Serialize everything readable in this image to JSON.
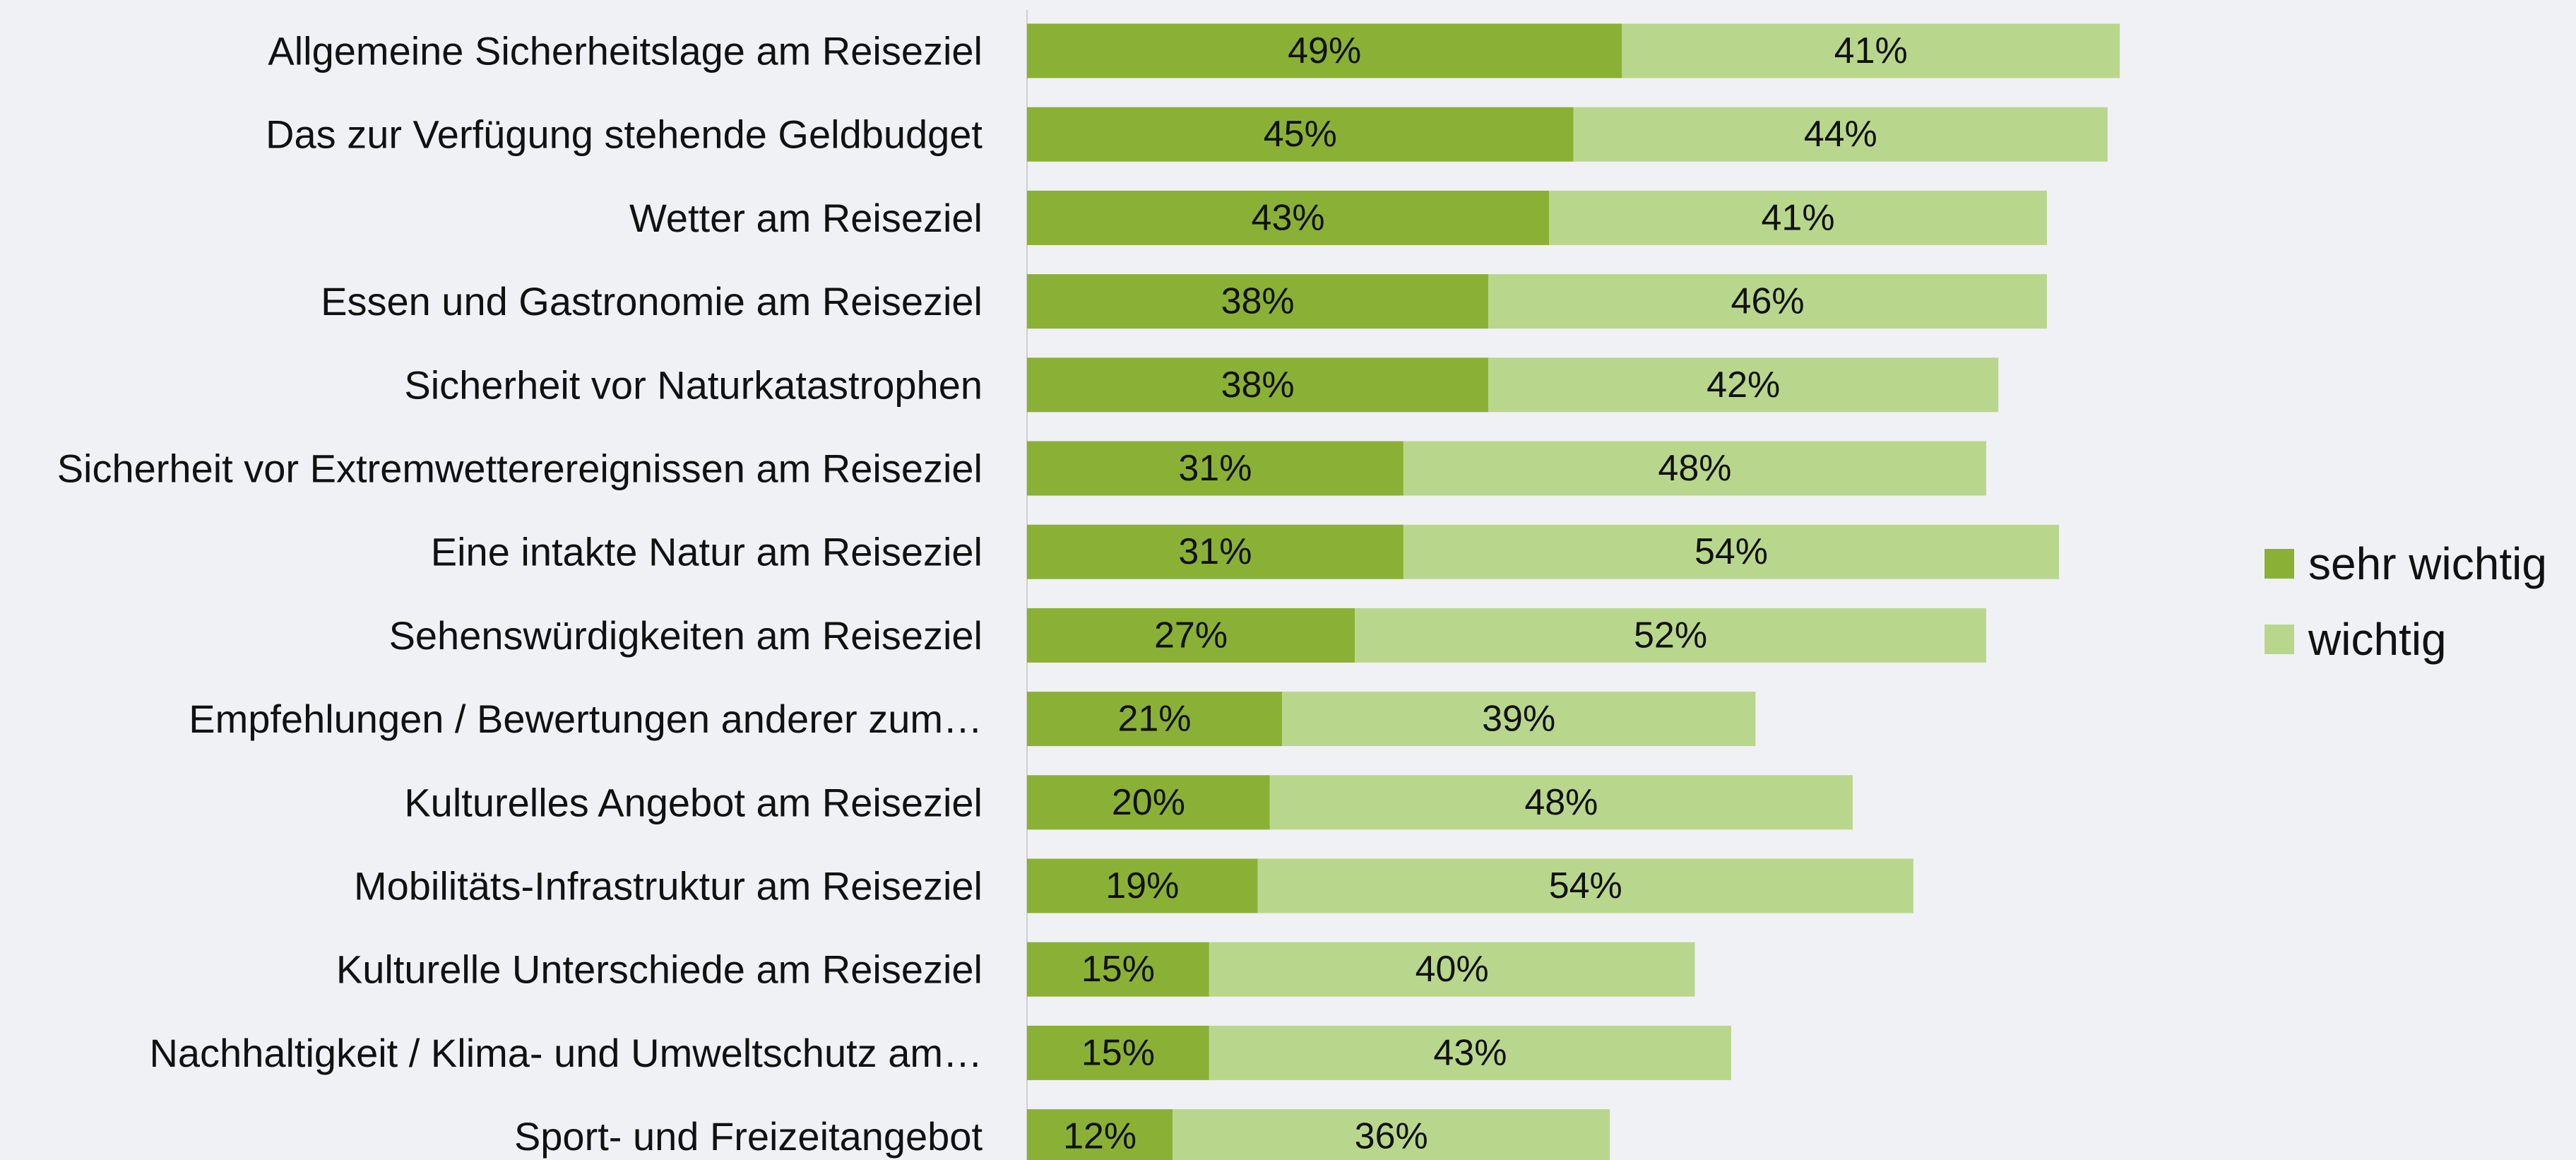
{
  "chart_data": {
    "type": "bar",
    "orientation": "horizontal",
    "stacked": true,
    "categories": [
      "Allgemeine Sicherheitslage am Reiseziel",
      "Das zur Verfügung stehende Geldbudget",
      "Wetter am Reiseziel",
      "Essen und Gastronomie am Reiseziel",
      "Sicherheit vor Naturkatastrophen",
      "Sicherheit vor Extremwetterereignissen am Reiseziel",
      "Eine intakte Natur am Reiseziel",
      "Sehenswürdigkeiten am Reiseziel",
      "Empfehlungen / Bewertungen anderer zum…",
      "Kulturelles Angebot am Reiseziel",
      "Mobilitäts-Infrastruktur am Reiseziel",
      "Kulturelle Unterschiede am Reiseziel",
      "Nachhaltigkeit / Klima- und Umweltschutz am…",
      "Sport- und Freizeitangebot"
    ],
    "series": [
      {
        "name": "sehr wichtig",
        "color": "#8ab135",
        "values": [
          49,
          45,
          43,
          38,
          38,
          31,
          31,
          27,
          21,
          20,
          19,
          15,
          15,
          12
        ],
        "value_labels": [
          "49%",
          "45%",
          "43%",
          "38%",
          "38%",
          "31%",
          "31%",
          "27%",
          "21%",
          "20%",
          "19%",
          "15%",
          "15%",
          "12%"
        ]
      },
      {
        "name": "wichtig",
        "color": "#b9d78c",
        "values": [
          41,
          44,
          41,
          46,
          42,
          48,
          54,
          52,
          39,
          48,
          54,
          40,
          43,
          36
        ],
        "value_labels": [
          "41%",
          "44%",
          "41%",
          "46%",
          "42%",
          "48%",
          "54%",
          "52%",
          "39%",
          "48%",
          "54%",
          "40%",
          "43%",
          "36%"
        ]
      }
    ],
    "legend": "right"
  }
}
